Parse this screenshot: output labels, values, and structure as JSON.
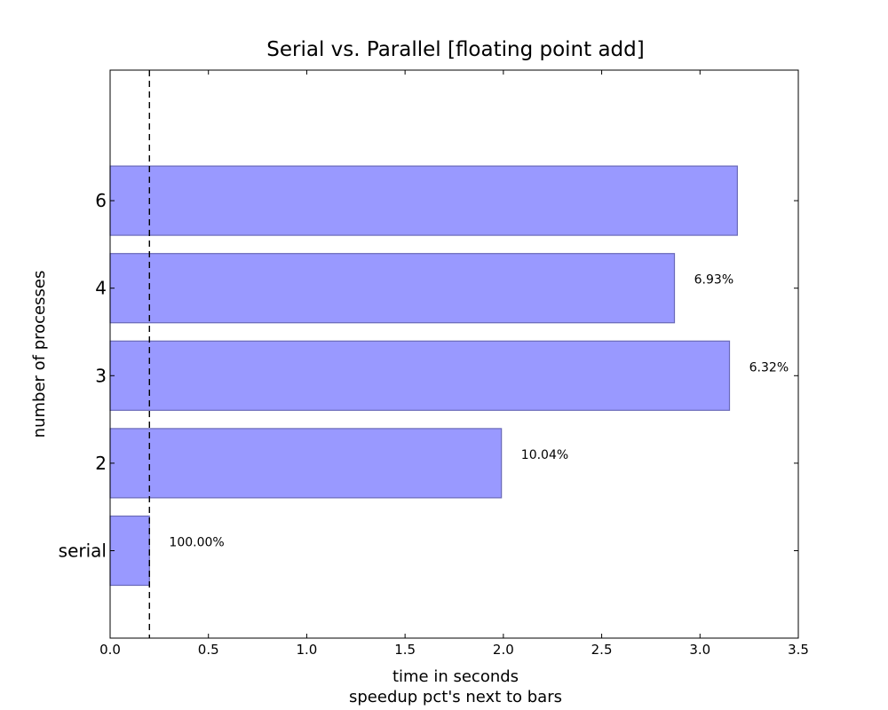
{
  "chart_data": {
    "type": "bar",
    "orientation": "horizontal",
    "title": "Serial vs. Parallel [floating point add]",
    "xlabel": "time in seconds",
    "xlabel_line2": "speedup pct's next to bars",
    "ylabel": "number of processes",
    "categories": [
      "serial",
      "2",
      "3",
      "4",
      "6"
    ],
    "values": [
      0.2,
      1.99,
      3.15,
      2.87,
      3.19
    ],
    "bar_labels": [
      "100.00%",
      "10.04%",
      "6.32%",
      "6.93%",
      ""
    ],
    "xlim": [
      0,
      3.5
    ],
    "xticks": [
      "0.0",
      "0.5",
      "1.0",
      "1.5",
      "2.0",
      "2.5",
      "3.0",
      "3.5"
    ],
    "reference_line_x": 0.2,
    "grid": false,
    "colors": {
      "bar_fill": "#9999ff",
      "bar_edge": "#6a6ab8",
      "reference_line": "#000000"
    }
  }
}
